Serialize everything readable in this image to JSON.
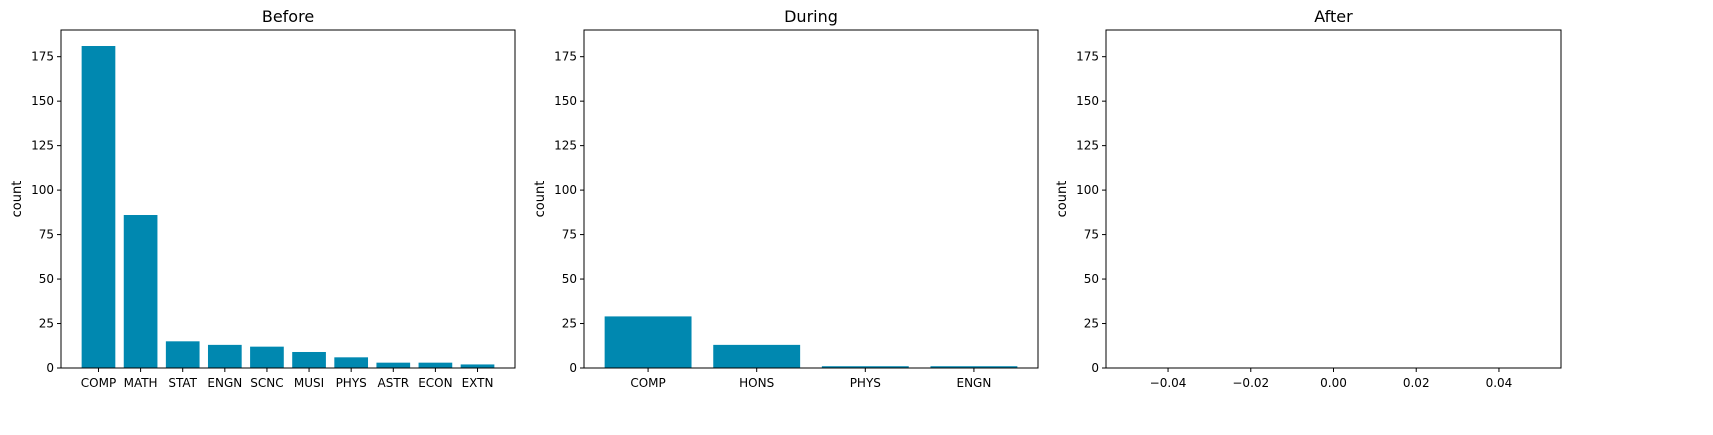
{
  "chart_data": [
    {
      "type": "bar",
      "title": "Before",
      "ylabel": "count",
      "xlabel": "",
      "categories": [
        "COMP",
        "MATH",
        "STAT",
        "ENGN",
        "SCNC",
        "MUSI",
        "PHYS",
        "ASTR",
        "ECON",
        "EXTN"
      ],
      "values": [
        181,
        86,
        15,
        13,
        12,
        9,
        6,
        3,
        3,
        2
      ],
      "ylim": [
        0,
        190
      ],
      "yticks": [
        0,
        25,
        50,
        75,
        100,
        125,
        150,
        175
      ],
      "color": "#0088b0"
    },
    {
      "type": "bar",
      "title": "During",
      "ylabel": "count",
      "xlabel": "",
      "categories": [
        "COMP",
        "HONS",
        "PHYS",
        "ENGN"
      ],
      "values": [
        29,
        13,
        1,
        1
      ],
      "ylim": [
        0,
        190
      ],
      "yticks": [
        0,
        25,
        50,
        75,
        100,
        125,
        150,
        175
      ],
      "color": "#0088b0"
    },
    {
      "type": "bar",
      "title": "After",
      "ylabel": "count",
      "xlabel": "",
      "categories": [],
      "values": [],
      "ylim": [
        0,
        190
      ],
      "xlim": [
        -0.055,
        0.055
      ],
      "yticks": [
        0,
        25,
        50,
        75,
        100,
        125,
        150,
        175
      ],
      "xticks": [
        -0.04,
        -0.02,
        0.0,
        0.02,
        0.04
      ],
      "xtick_labels": [
        "−0.04",
        "−0.02",
        "0.00",
        "0.02",
        "0.04"
      ],
      "color": "#0088b0"
    }
  ]
}
